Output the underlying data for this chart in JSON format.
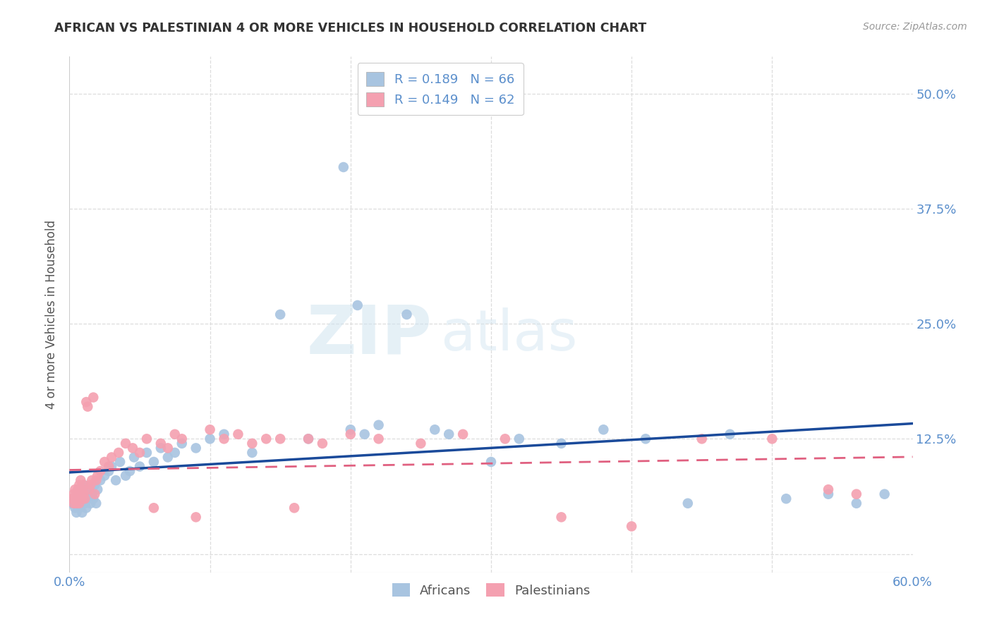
{
  "title": "AFRICAN VS PALESTINIAN 4 OR MORE VEHICLES IN HOUSEHOLD CORRELATION CHART",
  "source": "Source: ZipAtlas.com",
  "xlabel": "",
  "ylabel": "4 or more Vehicles in Household",
  "xlim": [
    0.0,
    0.6
  ],
  "ylim": [
    -0.02,
    0.54
  ],
  "xticks": [
    0.0,
    0.1,
    0.2,
    0.3,
    0.4,
    0.5,
    0.6
  ],
  "xticklabels": [
    "0.0%",
    "",
    "",
    "",
    "",
    "",
    "60.0%"
  ],
  "yticks": [
    0.0,
    0.125,
    0.25,
    0.375,
    0.5
  ],
  "yticklabels": [
    "",
    "12.5%",
    "25.0%",
    "37.5%",
    "50.0%"
  ],
  "african_R": 0.189,
  "african_N": 66,
  "palestinian_R": 0.149,
  "palestinian_N": 62,
  "african_color": "#a8c4e0",
  "palestinian_color": "#f4a0b0",
  "african_line_color": "#1a4a9a",
  "palestinian_line_color": "#e06080",
  "watermark_top": "ZIP",
  "watermark_bottom": "atlas",
  "background_color": "#ffffff",
  "grid_color": "#dddddd",
  "african_x": [
    0.002,
    0.003,
    0.004,
    0.005,
    0.005,
    0.006,
    0.007,
    0.007,
    0.008,
    0.008,
    0.009,
    0.009,
    0.01,
    0.01,
    0.011,
    0.011,
    0.012,
    0.013,
    0.014,
    0.015,
    0.016,
    0.017,
    0.018,
    0.019,
    0.02,
    0.022,
    0.025,
    0.028,
    0.03,
    0.033,
    0.036,
    0.04,
    0.043,
    0.046,
    0.05,
    0.055,
    0.06,
    0.065,
    0.07,
    0.075,
    0.08,
    0.09,
    0.1,
    0.11,
    0.13,
    0.15,
    0.17,
    0.2,
    0.21,
    0.22,
    0.24,
    0.26,
    0.27,
    0.3,
    0.32,
    0.35,
    0.38,
    0.41,
    0.44,
    0.47,
    0.51,
    0.54,
    0.56,
    0.58,
    0.195,
    0.205
  ],
  "african_y": [
    0.055,
    0.06,
    0.05,
    0.065,
    0.045,
    0.06,
    0.07,
    0.05,
    0.065,
    0.055,
    0.07,
    0.045,
    0.06,
    0.075,
    0.055,
    0.065,
    0.05,
    0.07,
    0.06,
    0.055,
    0.065,
    0.06,
    0.075,
    0.055,
    0.07,
    0.08,
    0.085,
    0.09,
    0.095,
    0.08,
    0.1,
    0.085,
    0.09,
    0.105,
    0.095,
    0.11,
    0.1,
    0.115,
    0.105,
    0.11,
    0.12,
    0.115,
    0.125,
    0.13,
    0.11,
    0.26,
    0.125,
    0.135,
    0.13,
    0.14,
    0.26,
    0.135,
    0.13,
    0.1,
    0.125,
    0.12,
    0.135,
    0.125,
    0.055,
    0.13,
    0.06,
    0.065,
    0.055,
    0.065,
    0.42,
    0.27
  ],
  "palestinian_x": [
    0.002,
    0.003,
    0.003,
    0.004,
    0.004,
    0.005,
    0.005,
    0.006,
    0.006,
    0.007,
    0.007,
    0.008,
    0.008,
    0.009,
    0.009,
    0.01,
    0.01,
    0.011,
    0.012,
    0.013,
    0.014,
    0.015,
    0.016,
    0.017,
    0.018,
    0.019,
    0.02,
    0.022,
    0.025,
    0.028,
    0.03,
    0.035,
    0.04,
    0.045,
    0.05,
    0.055,
    0.06,
    0.065,
    0.07,
    0.075,
    0.08,
    0.09,
    0.1,
    0.11,
    0.12,
    0.13,
    0.14,
    0.15,
    0.16,
    0.17,
    0.18,
    0.2,
    0.22,
    0.25,
    0.28,
    0.31,
    0.35,
    0.4,
    0.45,
    0.5,
    0.54,
    0.56
  ],
  "palestinian_y": [
    0.06,
    0.065,
    0.055,
    0.06,
    0.07,
    0.065,
    0.055,
    0.07,
    0.06,
    0.075,
    0.055,
    0.065,
    0.08,
    0.06,
    0.07,
    0.065,
    0.075,
    0.06,
    0.165,
    0.16,
    0.07,
    0.075,
    0.08,
    0.17,
    0.065,
    0.08,
    0.085,
    0.09,
    0.1,
    0.095,
    0.105,
    0.11,
    0.12,
    0.115,
    0.11,
    0.125,
    0.05,
    0.12,
    0.115,
    0.13,
    0.125,
    0.04,
    0.135,
    0.125,
    0.13,
    0.12,
    0.125,
    0.125,
    0.05,
    0.125,
    0.12,
    0.13,
    0.125,
    0.12,
    0.13,
    0.125,
    0.04,
    0.03,
    0.125,
    0.125,
    0.07,
    0.065
  ]
}
